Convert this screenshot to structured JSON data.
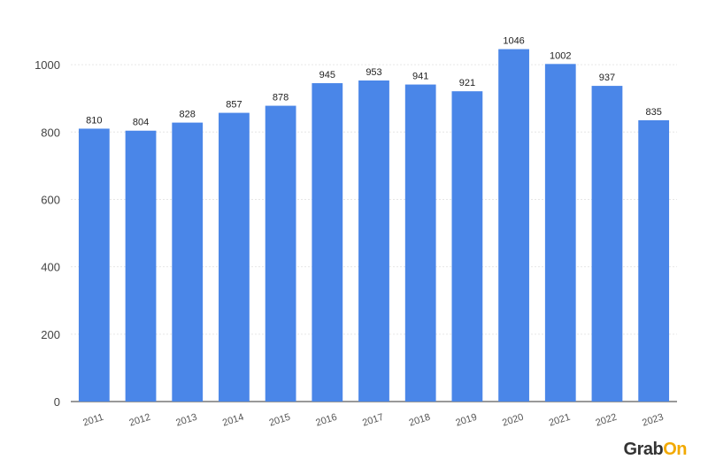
{
  "chart_data": {
    "type": "bar",
    "categories": [
      "2011",
      "2012",
      "2013",
      "2014",
      "2015",
      "2016",
      "2017",
      "2018",
      "2019",
      "2020",
      "2021",
      "2022",
      "2023"
    ],
    "values": [
      810,
      804,
      828,
      857,
      878,
      945,
      953,
      941,
      921,
      1046,
      1002,
      937,
      835
    ],
    "ylim": [
      0,
      1100
    ],
    "yticks": [
      0,
      200,
      400,
      600,
      800,
      1000
    ],
    "title": "",
    "xlabel": "",
    "ylabel": "",
    "bar_color": "#4a86e8",
    "grid": true,
    "legend": "none"
  },
  "brand": {
    "text_main": "Grab",
    "text_accent": "On",
    "accent_color": "#f2a900"
  }
}
